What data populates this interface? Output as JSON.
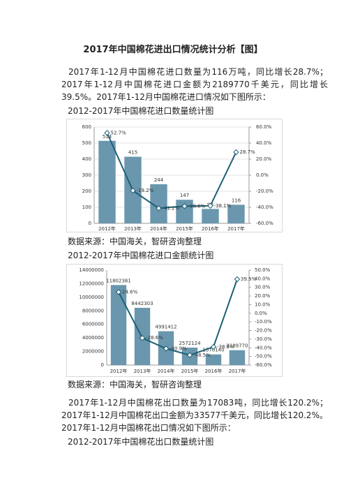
{
  "title": "2017年中国棉花进出口情况统计分析【图】",
  "paragraph_1": "2017年1-12月中国棉花进口数量为116万吨，同比增长28.7%；2017年1-12月中国棉花进口金额为2189770千美元，同比增长39.5%。2017年1-12月中国棉花进口情况如下图所示：",
  "caption_1": "2012-2017年中国棉花进口数量统计图",
  "source_1": "数据来源：中国海关，智研咨询整理",
  "caption_2": "2012-2017年中国棉花进口金额统计图",
  "source_2": "数据来源：中国海关，智研咨询整理",
  "paragraph_2": "2017年1-12月中国棉花出口数量为17083吨，同比增长120.2%；2017年1-12月中国棉花出口金额为33577千美元，同比增长120.2%。2017年1-12月中国棉花出口情况如下图所示：",
  "caption_3": "2012-2017年中国棉花出口数量统计图",
  "chart_data": [
    {
      "type": "bar",
      "categories": [
        "2012年",
        "2013年",
        "2014年",
        "2015年",
        "2016年",
        "2017年"
      ],
      "series": [
        {
          "type": "bar",
          "color": "#6a97ae",
          "values": [
            514,
            415,
            244,
            147,
            90,
            116
          ]
        },
        {
          "type": "line",
          "axis": "y2",
          "color": "#1d5f74",
          "values": [
            52.7,
            -19.2,
            -41.2,
            -38.6,
            -38.1,
            28.7
          ],
          "value_labels": [
            "52.7%",
            "-19.2%",
            "-41.2%",
            "-38.6%",
            "-38.1%",
            "28.7%"
          ]
        }
      ],
      "ylim": [
        0,
        600
      ],
      "yticks": [
        0,
        100,
        200,
        300,
        400,
        500,
        600
      ],
      "y2lim": [
        -60,
        60
      ],
      "y2ticks": [
        {
          "value": -60,
          "label": "-60.0%"
        },
        {
          "value": -40,
          "label": "-40.0%"
        },
        {
          "value": -20,
          "label": "-20.0%"
        },
        {
          "value": 0,
          "label": "0.0%"
        },
        {
          "value": 20,
          "label": "20.0%"
        },
        {
          "value": 40,
          "label": "40.0%"
        },
        {
          "value": 60,
          "label": "60.0%"
        }
      ],
      "grid": true
    },
    {
      "type": "bar",
      "categories": [
        "2012年",
        "2013年",
        "2014年",
        "2015年",
        "2016年",
        "2017年"
      ],
      "series": [
        {
          "type": "bar",
          "color": "#6a97ae",
          "values": [
            11802381,
            8442303,
            4991412,
            2572124,
            1570140,
            2189770
          ]
        },
        {
          "type": "line",
          "axis": "y2",
          "color": "#1d5f74",
          "values": [
            24.6,
            -28.6,
            -40.9,
            -48.5,
            -38.9,
            39.5
          ],
          "value_labels": [
            "24.6%",
            "-28.6%",
            "-40.9%",
            "-48.5%",
            "-38.9%",
            "39.5%"
          ]
        }
      ],
      "ylim": [
        0,
        14000000
      ],
      "yticks": [
        0,
        2000000,
        4000000,
        6000000,
        8000000,
        10000000,
        12000000,
        14000000
      ],
      "y2lim": [
        -60,
        50
      ],
      "y2ticks": [
        {
          "value": -60,
          "label": "-60.0%"
        },
        {
          "value": -50,
          "label": "-50.0%"
        },
        {
          "value": -40,
          "label": "-40.0%"
        },
        {
          "value": -30,
          "label": "-30.0%"
        },
        {
          "value": -20,
          "label": "-20.0%"
        },
        {
          "value": -10,
          "label": "-10.0%"
        },
        {
          "value": 0,
          "label": "0.0%"
        },
        {
          "value": 10,
          "label": "10.0%"
        },
        {
          "value": 20,
          "label": "20.0%"
        },
        {
          "value": 30,
          "label": "30.0%"
        },
        {
          "value": 40,
          "label": "40.0%"
        },
        {
          "value": 50,
          "label": "50.0%"
        }
      ],
      "grid": false
    }
  ]
}
